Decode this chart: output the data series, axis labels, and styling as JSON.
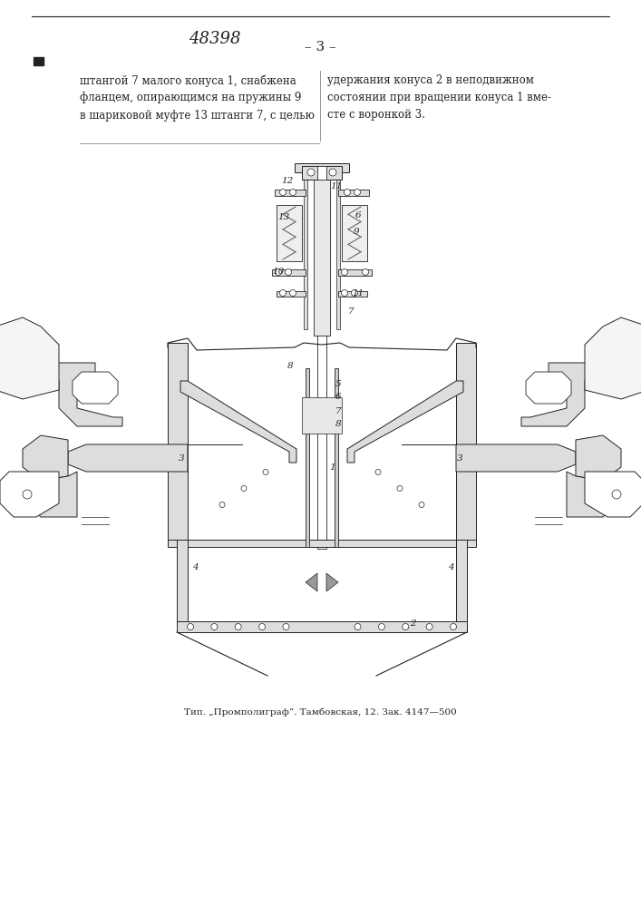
{
  "patent_number": "48398",
  "page_number": "– 3 –",
  "text_left": "штангой 7 малого конуса 1, снабжена\nфланцем, опирающимся на пружины 9\nв шариковой муфте 13 штанги 7, с целью",
  "text_right": "удержания конуса 2 в неподвижном\nсостоянии при вращении конуса 1 вме-\nсте с воронкой 3.",
  "footer": "Тип. „Промполиграф“. Тамбовская, 12. Зак. 4147—500",
  "bg_color": "#ffffff",
  "text_color": "#1a1a1a",
  "line_color": "#000000",
  "fig_width": 7.07,
  "fig_height": 10.0
}
